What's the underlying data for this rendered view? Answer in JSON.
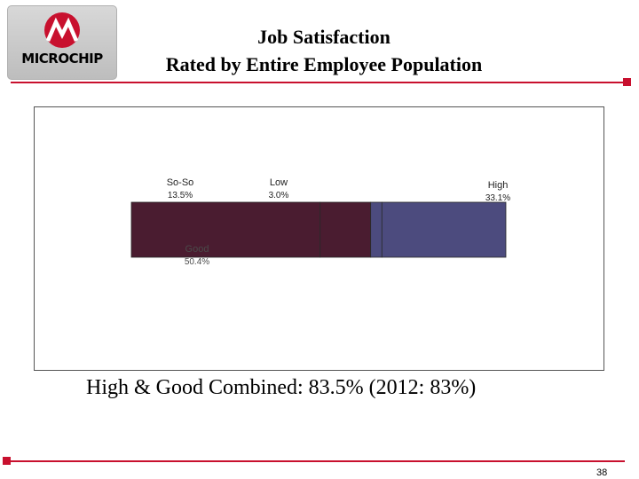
{
  "logo": {
    "text": "MICROCHIP",
    "icon": "microchip-logo-icon"
  },
  "title": {
    "line1": "Job Satisfaction",
    "line2": "Rated by Entire Employee Population"
  },
  "colors": {
    "accent": "#c8102e",
    "good": "#4a1c30",
    "so_so": "#4c4b7e",
    "low": "#4c4b7e",
    "high": "#4c4b7e"
  },
  "chart_data": {
    "type": "bar",
    "orientation": "horizontal-stacked",
    "categories": [
      "Good",
      "So-So",
      "Low",
      "High"
    ],
    "values": [
      50.4,
      13.5,
      3.0,
      33.1
    ],
    "value_labels": [
      "50.4%",
      "13.5%",
      "3.0%",
      "33.1%"
    ],
    "title": "",
    "legend": "none",
    "grid": false
  },
  "footer": {
    "combined": "High & Good Combined:  83.5% (2012:  83%)",
    "page_number": "38"
  }
}
